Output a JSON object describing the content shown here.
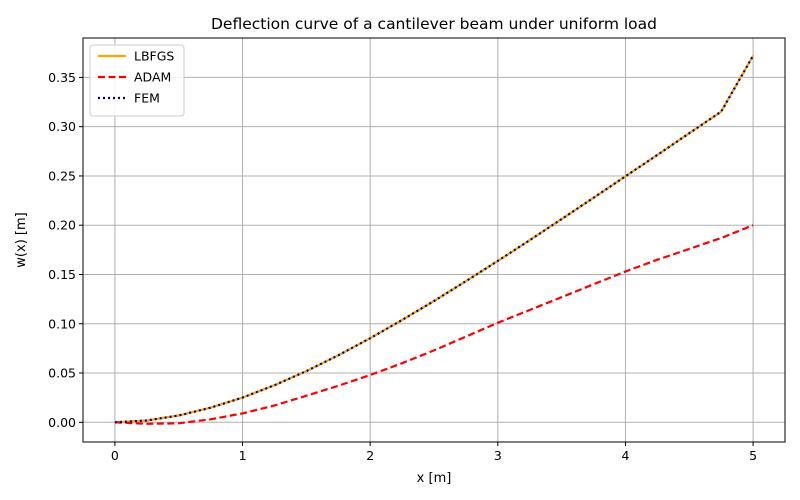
{
  "chart_data": {
    "type": "line",
    "title": "Deflection curve of a cantilever beam under uniform load",
    "xlabel": "x [m]",
    "ylabel": "w(x) [m]",
    "xlim": [
      -0.25,
      5.25
    ],
    "ylim": [
      -0.02,
      0.39
    ],
    "xticks": [
      0,
      1,
      2,
      3,
      4,
      5
    ],
    "xtick_labels": [
      "0",
      "1",
      "2",
      "3",
      "4",
      "5"
    ],
    "yticks": [
      0.0,
      0.05,
      0.1,
      0.15,
      0.2,
      0.25,
      0.3,
      0.35
    ],
    "ytick_labels": [
      "0.00",
      "0.05",
      "0.10",
      "0.15",
      "0.20",
      "0.25",
      "0.30",
      "0.35"
    ],
    "grid": true,
    "legend_position": "top-left",
    "x": [
      0,
      0.25,
      0.5,
      0.75,
      1,
      1.25,
      1.5,
      1.75,
      2,
      2.25,
      2.5,
      2.75,
      3,
      3.25,
      3.5,
      3.75,
      4,
      4.25,
      4.5,
      4.75,
      5
    ],
    "series": [
      {
        "name": "LBFGS",
        "color": "#ffa500",
        "style": "solid",
        "values": [
          0.0,
          0.0018,
          0.0069,
          0.0148,
          0.0251,
          0.0376,
          0.052,
          0.068,
          0.0853,
          0.1038,
          0.1231,
          0.1432,
          0.1638,
          0.1848,
          0.2062,
          0.2278,
          0.2496,
          0.2714,
          0.2934,
          0.3153,
          0.372
        ]
      },
      {
        "name": "ADAM",
        "color": "#ff0000",
        "style": "dashed",
        "values": [
          0.0,
          -0.0015,
          -0.001,
          0.003,
          0.009,
          0.017,
          0.027,
          0.037,
          0.048,
          0.06,
          0.073,
          0.087,
          0.101,
          0.114,
          0.127,
          0.14,
          0.153,
          0.165,
          0.176,
          0.187,
          0.2
        ]
      },
      {
        "name": "FEM",
        "color": "#000080",
        "style": "dotted",
        "values": [
          0.0,
          0.0018,
          0.0069,
          0.0148,
          0.0251,
          0.0376,
          0.052,
          0.068,
          0.0853,
          0.1038,
          0.1231,
          0.1432,
          0.1638,
          0.1848,
          0.2062,
          0.2278,
          0.2496,
          0.2714,
          0.2934,
          0.3153,
          0.372
        ]
      }
    ]
  }
}
